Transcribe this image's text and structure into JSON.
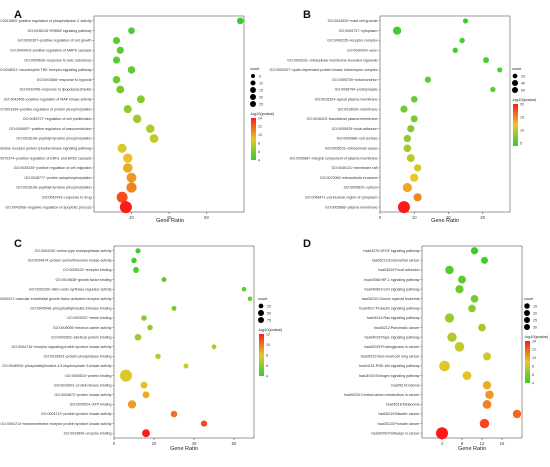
{
  "chart_data": [
    {
      "panel": "A",
      "type": "scatter",
      "xlabel": "Gene Ratio",
      "ylabel": "",
      "xlim": [
        0,
        80
      ],
      "xticks": [
        20,
        40,
        60
      ],
      "color_scale": {
        "title": "-log10(pvalue)",
        "min": 4,
        "max": 14,
        "ticks": [
          4,
          6,
          8,
          10,
          12,
          14
        ],
        "low_color": "#33cc33",
        "high_color": "#ff1a1a"
      },
      "size_legend": {
        "title": "count",
        "ticks": [
          5,
          10,
          15,
          20,
          25
        ]
      },
      "points": [
        {
          "term": "GO:0010863~positive regulation of phospholipase C activity",
          "x": 78,
          "count": 5,
          "p": 4.3
        },
        {
          "term": "GO:0038128~ERBB2 signaling pathway",
          "x": 20,
          "count": 5,
          "p": 4.6
        },
        {
          "term": "GO:0030307~positive regulation of cell growth",
          "x": 12,
          "count": 6,
          "p": 4.8
        },
        {
          "term": "GO:0043410~positive regulation of MAPK cascade",
          "x": 14,
          "count": 6,
          "p": 5.0
        },
        {
          "term": "GO:0009636~response to toxic substance",
          "x": 12,
          "count": 6,
          "p": 5.1
        },
        {
          "term": "GO:0048011~neurotrophin TRK receptor signaling pathway",
          "x": 20,
          "count": 7,
          "p": 5.3
        },
        {
          "term": "GO:0001666~response to hypoxia",
          "x": 12,
          "count": 7,
          "p": 5.5
        },
        {
          "term": "GO:0032496~response to lipopolysaccharide",
          "x": 14,
          "count": 8,
          "p": 5.8
        },
        {
          "term": "GO:0043406~positive regulation of MAP kinase activity",
          "x": 25,
          "count": 8,
          "p": 6.2
        },
        {
          "term": "GO:0001934~positive regulation of protein phosphorylation",
          "x": 18,
          "count": 9,
          "p": 6.6
        },
        {
          "term": "GO:0045727~regulation of cell proliferation",
          "x": 23,
          "count": 10,
          "p": 7.0
        },
        {
          "term": "GO:0045907~positive regulation of vasoconstriction",
          "x": 30,
          "count": 10,
          "p": 7.5
        },
        {
          "term": "GO:0018108~peptidyl-tyrosine phosphorylation",
          "x": 32,
          "count": 11,
          "p": 8.0
        },
        {
          "term": "GO:0007169~transmembrane receptor protein tyrosine kinase signaling pathway",
          "x": 15,
          "count": 12,
          "p": 8.6
        },
        {
          "term": "GO:0070374~positive regulation of ERK1 and ERK2 cascade",
          "x": 18,
          "count": 13,
          "p": 9.2
        },
        {
          "term": "GO:0030335~positive regulation of cell migration",
          "x": 18,
          "count": 14,
          "p": 9.8
        },
        {
          "term": "GO:0048777~protein autophosphorylation",
          "x": 20,
          "count": 15,
          "p": 10.4
        },
        {
          "term": "GO:0018108~peptidyl-tyrosine phosphorylation",
          "x": 20,
          "count": 17,
          "p": 11.0
        },
        {
          "term": "GO:0042493~response to drug",
          "x": 15,
          "count": 20,
          "p": 12.5
        },
        {
          "term": "GO:0043066~negative regulation of apoptotic process",
          "x": 17,
          "count": 25,
          "p": 14.0
        }
      ]
    },
    {
      "panel": "B",
      "type": "scatter",
      "xlabel": "Gene Ratio",
      "ylabel": "",
      "xlim": [
        0,
        38
      ],
      "xticks": [
        0,
        10,
        20,
        30
      ],
      "color_scale": {
        "title": "-log10(pvalue)",
        "min": 4,
        "max": 20,
        "ticks": [
          5,
          10,
          15,
          20
        ],
        "low_color": "#33cc33",
        "high_color": "#ff1a1a"
      },
      "size_legend": {
        "title": "count",
        "ticks": [
          20,
          40,
          60
        ]
      },
      "points": [
        {
          "term": "GO:0042629~mast cell granule",
          "x": 25,
          "count": 5,
          "p": 4.2
        },
        {
          "term": "GO:0005737~cytoplasm",
          "x": 5,
          "count": 22,
          "p": 4.6
        },
        {
          "term": "GO:0043235~receptor complex",
          "x": 24,
          "count": 6,
          "p": 4.8
        },
        {
          "term": "GO:0030424~axon",
          "x": 22,
          "count": 6,
          "p": 5.0
        },
        {
          "term": "GO:0043231~intracellular membrane-bounded organelle",
          "x": 31,
          "count": 8,
          "p": 5.2
        },
        {
          "term": "GO:0000307~cyclin-dependent protein kinase holoenzyme complex",
          "x": 35,
          "count": 5,
          "p": 5.4
        },
        {
          "term": "GO:0005739~mitochondrion",
          "x": 14,
          "count": 10,
          "p": 5.8
        },
        {
          "term": "GO:0098794~postsynapse",
          "x": 33,
          "count": 6,
          "p": 6.0
        },
        {
          "term": "GO:0016324~apical plasma membrane",
          "x": 10,
          "count": 12,
          "p": 6.4
        },
        {
          "term": "GO:0016020~membrane",
          "x": 7,
          "count": 15,
          "p": 6.8
        },
        {
          "term": "GO:0016323~basolateral plasma membrane",
          "x": 10,
          "count": 14,
          "p": 7.2
        },
        {
          "term": "GO:0005925~focal adhesion",
          "x": 9,
          "count": 15,
          "p": 7.8
        },
        {
          "term": "GO:0009986~cell surface",
          "x": 8,
          "count": 16,
          "p": 8.4
        },
        {
          "term": "GO:0005615~extracellular space",
          "x": 8,
          "count": 18,
          "p": 9.0
        },
        {
          "term": "GO:0005887~integral component of plasma membrane",
          "x": 9,
          "count": 20,
          "p": 10.0
        },
        {
          "term": "GO:0045121~membrane raft",
          "x": 11,
          "count": 16,
          "p": 11.0
        },
        {
          "term": "GO:0070062~extracellular exosome",
          "x": 10,
          "count": 22,
          "p": 12.0
        },
        {
          "term": "GO:0005829~cytosol",
          "x": 8,
          "count": 30,
          "p": 13.5
        },
        {
          "term": "GO:0048471~perinuclear region of cytoplasm",
          "x": 11,
          "count": 22,
          "p": 15.0
        },
        {
          "term": "GO:0005886~plasma membrane",
          "x": 7,
          "count": 60,
          "p": 20.0
        }
      ]
    },
    {
      "panel": "C",
      "type": "scatter",
      "xlabel": "Gene Ratio",
      "ylabel": "",
      "xlim": [
        0,
        70
      ],
      "xticks": [
        0,
        20,
        40,
        60
      ],
      "color_scale": {
        "title": "-log10(pvalue)",
        "min": 4,
        "max": 12,
        "ticks": [
          4,
          6,
          8,
          10,
          12
        ],
        "low_color": "#33cc33",
        "high_color": "#ff1a1a"
      },
      "size_legend": {
        "title": "count",
        "ticks": [
          25,
          50,
          75
        ]
      },
      "points": [
        {
          "term": "GO:0004252~serine-type endopeptidase activity",
          "x": 12,
          "count": 6,
          "p": 4.2
        },
        {
          "term": "GO:0004674~protein serine/threonine kinase activity",
          "x": 10,
          "count": 8,
          "p": 4.4
        },
        {
          "term": "GO:0005102~receptor binding",
          "x": 11,
          "count": 10,
          "p": 4.6
        },
        {
          "term": "GO:0019838~growth factor binding",
          "x": 25,
          "count": 5,
          "p": 4.8
        },
        {
          "term": "GO:0030235~nitric-oxide synthase regulator activity",
          "x": 65,
          "count": 4,
          "p": 5.0
        },
        {
          "term": "GO:0005021~vascular endothelial growth factor-activated receptor activity",
          "x": 68,
          "count": 4,
          "p": 5.2
        },
        {
          "term": "GO:0043548~phosphatidylinositol 3-kinase binding",
          "x": 30,
          "count": 5,
          "p": 5.5
        },
        {
          "term": "GO:0020037~heme binding",
          "x": 15,
          "count": 8,
          "p": 5.8
        },
        {
          "term": "GO:0009055~electron carrier activity",
          "x": 18,
          "count": 8,
          "p": 6.1
        },
        {
          "term": "GO:0042802~identical protein binding",
          "x": 12,
          "count": 15,
          "p": 6.4
        },
        {
          "term": "GO:0004716~receptor signaling protein tyrosine kinase activity",
          "x": 50,
          "count": 5,
          "p": 6.8
        },
        {
          "term": "GO:0019903~protein phosphatase binding",
          "x": 22,
          "count": 8,
          "p": 7.1
        },
        {
          "term": "GO:0046934~phosphatidylinositol-4,5-bisphosphate 3-kinase activity",
          "x": 36,
          "count": 6,
          "p": 7.4
        },
        {
          "term": "GO:0005515~protein binding",
          "x": 6,
          "count": 75,
          "p": 7.8
        },
        {
          "term": "GO:0019901~protein kinase binding",
          "x": 15,
          "count": 16,
          "p": 8.2
        },
        {
          "term": "GO:0004672~protein kinase activity",
          "x": 16,
          "count": 17,
          "p": 8.6
        },
        {
          "term": "GO:0005524~ATP binding",
          "x": 9,
          "count": 28,
          "p": 9.0
        },
        {
          "term": "GO:0004713~protein tyrosine kinase activity",
          "x": 30,
          "count": 14,
          "p": 10.0
        },
        {
          "term": "GO:0004714~transmembrane receptor protein tyrosine kinase activity",
          "x": 45,
          "count": 12,
          "p": 11.0
        },
        {
          "term": "GO:0019899~enzyme binding",
          "x": 16,
          "count": 24,
          "p": 12.0
        }
      ]
    },
    {
      "panel": "D",
      "type": "scatter",
      "xlabel": "Gene Ratio",
      "ylabel": "",
      "xlim": [
        0,
        20
      ],
      "xticks": [
        4,
        8,
        12,
        16
      ],
      "color_scale": {
        "title": "-log10(pvalue)",
        "min": 4,
        "max": 14,
        "ticks": [
          4,
          6,
          8,
          10,
          12,
          14
        ],
        "low_color": "#33cc33",
        "high_color": "#ff1a1a"
      },
      "size_legend": {
        "title": "count",
        "ticks": [
          15,
          20,
          25,
          30
        ]
      },
      "points": [
        {
          "term": "hsa04370:VEGF signaling pathway",
          "x": 10.5,
          "count": 8,
          "p": 4.1
        },
        {
          "term": "hsa05213:Endometrial cancer",
          "x": 12.5,
          "count": 7,
          "p": 4.4
        },
        {
          "term": "hsa04510:Focal adhesion",
          "x": 5.5,
          "count": 12,
          "p": 4.8
        },
        {
          "term": "hsa04066:HIF-1 signaling pathway",
          "x": 8.0,
          "count": 10,
          "p": 5.1
        },
        {
          "term": "hsa04068:FoxO signaling pathway",
          "x": 7.5,
          "count": 11,
          "p": 5.5
        },
        {
          "term": "hsa05220:Chronic myeloid leukemia",
          "x": 10.5,
          "count": 9,
          "p": 5.9
        },
        {
          "term": "hsa04917:Prolactin signaling pathway",
          "x": 10.0,
          "count": 9,
          "p": 6.3
        },
        {
          "term": "hsa04014:Ras signaling pathway",
          "x": 5.5,
          "count": 15,
          "p": 6.8
        },
        {
          "term": "hsa05212:Pancreatic cancer",
          "x": 12.0,
          "count": 9,
          "p": 7.2
        },
        {
          "term": "hsa04015:Rap1 signaling pathway",
          "x": 6.0,
          "count": 16,
          "p": 7.6
        },
        {
          "term": "hsa05205:Proteoglycans in cancer",
          "x": 7.5,
          "count": 17,
          "p": 8.0
        },
        {
          "term": "hsa05223:Non-small cell lung cancer",
          "x": 13.0,
          "count": 10,
          "p": 8.4
        },
        {
          "term": "hsa04151:PI3K-Akt signaling pathway",
          "x": 4.5,
          "count": 22,
          "p": 8.8
        },
        {
          "term": "hsa04915:Estrogen signaling pathway",
          "x": 9.0,
          "count": 13,
          "p": 9.2
        },
        {
          "term": "hsa05214:Glioma",
          "x": 13.0,
          "count": 12,
          "p": 9.8
        },
        {
          "term": "hsa05230:Central carbon metabolism in cancer",
          "x": 13.5,
          "count": 12,
          "p": 10.4
        },
        {
          "term": "hsa05218:Melanoma",
          "x": 13.0,
          "count": 13,
          "p": 11.0
        },
        {
          "term": "hsa05219:Bladder cancer",
          "x": 19.0,
          "count": 12,
          "p": 11.8
        },
        {
          "term": "hsa05215:Prostate cancer",
          "x": 12.5,
          "count": 16,
          "p": 12.8
        },
        {
          "term": "hsa05200:Pathways in cancer",
          "x": 4.0,
          "count": 30,
          "p": 14.0
        }
      ]
    }
  ]
}
